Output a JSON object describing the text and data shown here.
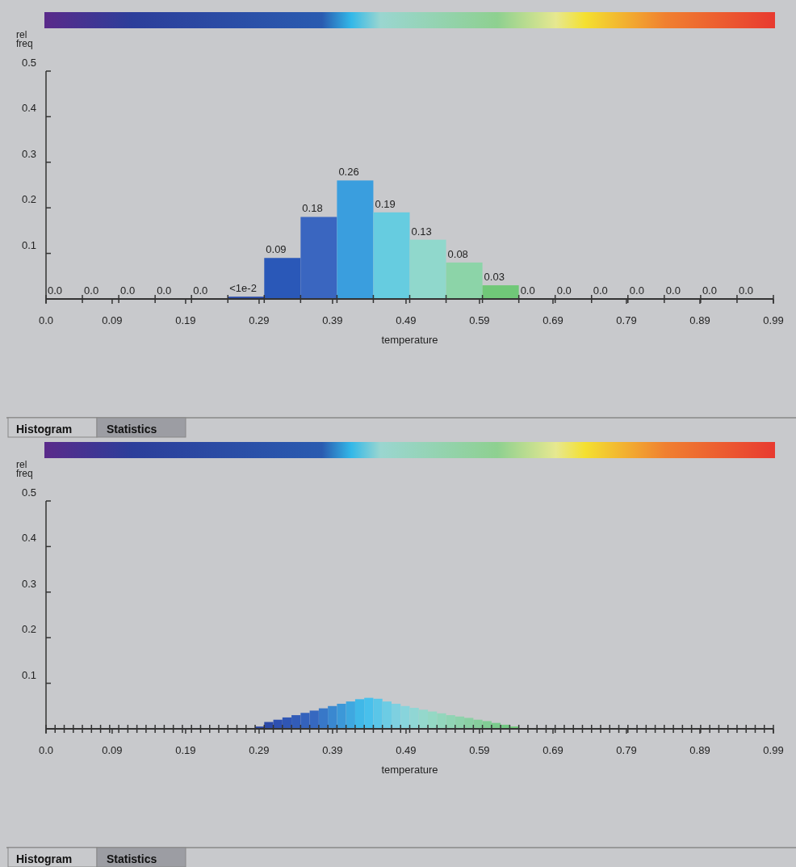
{
  "chart_data": [
    {
      "type": "histogram",
      "bins": [
        0,
        0.0495,
        0.099,
        0.1485,
        0.198,
        0.2475,
        0.297,
        0.3465,
        0.396,
        0.4455,
        0.495,
        0.5445,
        0.594,
        0.6435,
        0.693,
        0.7425,
        0.792,
        0.8415,
        0.891,
        0.9405,
        0.99
      ],
      "values": [
        0,
        0,
        0,
        0,
        0,
        0.005,
        0.09,
        0.18,
        0.26,
        0.19,
        0.13,
        0.08,
        0.03,
        0,
        0,
        0,
        0,
        0,
        0,
        0
      ],
      "value_labels": [
        "0.0",
        "0.0",
        "0.0",
        "0.0",
        "0.0",
        "<1e-2",
        "0.09",
        "0.18",
        "0.26",
        "0.19",
        "0.13",
        "0.08",
        "0.03",
        "0.0",
        "0.0",
        "0.0",
        "0.0",
        "0.0",
        "0.0",
        "0.0"
      ],
      "colors": [
        "#3a2a90",
        "#2c3e9a",
        "#2c44a0",
        "#2a4aa8",
        "#2a4aa8",
        "#2a4aa8",
        "#2a58b8",
        "#3a66c0",
        "#3a9ede",
        "#66cce0",
        "#90d8cc",
        "#8cd4a8",
        "#70c878",
        "#9ad890",
        "#e8e880",
        "#f4e030",
        "#f4b030",
        "#f08030",
        "#ec6030",
        "#e83a30"
      ],
      "xlim": [
        0,
        0.99
      ],
      "xticks": [
        {
          "value": 0,
          "label": "0.0"
        },
        0.09,
        0.19,
        0.29,
        0.39,
        0.49,
        0.59,
        0.69,
        0.79,
        0.89,
        0.99
      ],
      "ylim": [
        0,
        0.5
      ],
      "yticks": [
        0.1,
        0.2,
        0.3,
        0.4,
        0.5
      ],
      "xlabel": "temperature",
      "ylabel": "rel freq",
      "annotations": [
        "Histogram",
        "Statistics"
      ]
    },
    {
      "type": "histogram",
      "bins": [
        0,
        0.012375,
        0.02475,
        0.037125,
        0.0495,
        0.061875,
        0.07425,
        0.086625,
        0.099,
        0.111375,
        0.12375,
        0.136125,
        0.1485,
        0.160875,
        0.17325,
        0.185625,
        0.198,
        0.210375,
        0.22275,
        0.235125,
        0.2475,
        0.259875,
        0.27225,
        0.284625,
        0.297,
        0.309375,
        0.32175,
        0.334125,
        0.3465,
        0.358875,
        0.37125,
        0.383625,
        0.396,
        0.408375,
        0.42075,
        0.433125,
        0.4455,
        0.457875,
        0.47025,
        0.482625,
        0.495,
        0.507375,
        0.51975,
        0.532125,
        0.5445,
        0.556875,
        0.56925,
        0.581625,
        0.594,
        0.606375,
        0.61875,
        0.631125,
        0.6435,
        0.655875,
        0.66825,
        0.680625,
        0.693,
        0.705375,
        0.71775,
        0.730125,
        0.7425,
        0.754875,
        0.76725,
        0.779625,
        0.792,
        0.804375,
        0.81675,
        0.829125,
        0.8415,
        0.853875,
        0.86625,
        0.878625,
        0.891,
        0.903375,
        0.91575,
        0.928125,
        0.9405,
        0.952875,
        0.96525,
        0.977625,
        0.99
      ],
      "values": [
        0,
        0,
        0,
        0,
        0,
        0,
        0,
        0,
        0,
        0,
        0,
        0,
        0,
        0,
        0,
        0,
        0,
        0,
        0,
        0,
        0,
        0,
        0,
        0.005,
        0.015,
        0.02,
        0.025,
        0.03,
        0.035,
        0.04,
        0.045,
        0.05,
        0.055,
        0.06,
        0.065,
        0.068,
        0.066,
        0.06,
        0.055,
        0.05,
        0.046,
        0.042,
        0.038,
        0.034,
        0.03,
        0.027,
        0.024,
        0.02,
        0.017,
        0.013,
        0.009,
        0.005,
        0,
        0,
        0,
        0,
        0,
        0,
        0,
        0,
        0,
        0,
        0,
        0,
        0,
        0,
        0,
        0,
        0,
        0,
        0,
        0,
        0,
        0,
        0,
        0,
        0,
        0,
        0,
        0
      ],
      "colors": [
        "#2a44a0",
        "#2a44a0",
        "#2a44a0",
        "#2a44a0",
        "#2a44a0",
        "#2a44a0",
        "#2a44a0",
        "#2a44a0",
        "#2a44a0",
        "#2a44a0",
        "#2a44a0",
        "#2a44a0",
        "#2a44a0",
        "#2a44a0",
        "#2a44a0",
        "#2a44a0",
        "#2a44a0",
        "#2a44a0",
        "#2a44a0",
        "#2a44a0",
        "#2a44a0",
        "#2a44a0",
        "#2a44a0",
        "#2a44a0",
        "#2c4aa8",
        "#2e50b0",
        "#3056b4",
        "#325cb8",
        "#3462bc",
        "#3668c0",
        "#3878c8",
        "#3a88d0",
        "#3c98d8",
        "#3ea8e0",
        "#40b8e8",
        "#48c0ec",
        "#5ac6e8",
        "#6ccce4",
        "#7ed0e0",
        "#88d4dc",
        "#90d6d4",
        "#94d8cc",
        "#94d8c4",
        "#92d6bc",
        "#90d4b4",
        "#8ed2ac",
        "#8ad0a4",
        "#86ce9c",
        "#80cc94",
        "#7aca8c",
        "#74c884",
        "#70c878",
        "#70c878",
        "#70c878",
        "#70c878",
        "#70c878",
        "#70c878",
        "#70c878",
        "#70c878",
        "#70c878",
        "#70c878",
        "#70c878",
        "#70c878",
        "#70c878",
        "#70c878",
        "#70c878",
        "#70c878",
        "#70c878",
        "#70c878",
        "#70c878",
        "#70c878",
        "#70c878",
        "#70c878",
        "#70c878",
        "#70c878",
        "#70c878",
        "#70c878",
        "#70c878",
        "#70c878",
        "#70c878"
      ],
      "xlim": [
        0,
        0.99
      ],
      "xticks": [
        {
          "value": 0,
          "label": "0.0"
        },
        0.09,
        0.19,
        0.29,
        0.39,
        0.49,
        0.59,
        0.69,
        0.79,
        0.89,
        0.99
      ],
      "ylim": [
        0,
        0.5
      ],
      "yticks": [
        0.1,
        0.2,
        0.3,
        0.4,
        0.5
      ],
      "xlabel": "temperature",
      "ylabel": "rel freq",
      "annotations": [
        "Histogram",
        "Statistics"
      ]
    }
  ]
}
